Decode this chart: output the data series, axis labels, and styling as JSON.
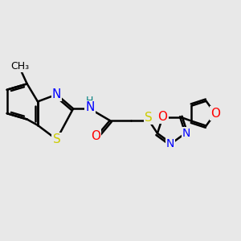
{
  "bg_color": "#e8e8e8",
  "line_color": "#000000",
  "bond_width": 1.8,
  "atom_colors": {
    "N": "#0000ff",
    "S": "#cccc00",
    "O": "#ff0000",
    "H": "#008080"
  },
  "font_size": 10,
  "figsize": [
    3.0,
    3.0
  ],
  "dpi": 100
}
